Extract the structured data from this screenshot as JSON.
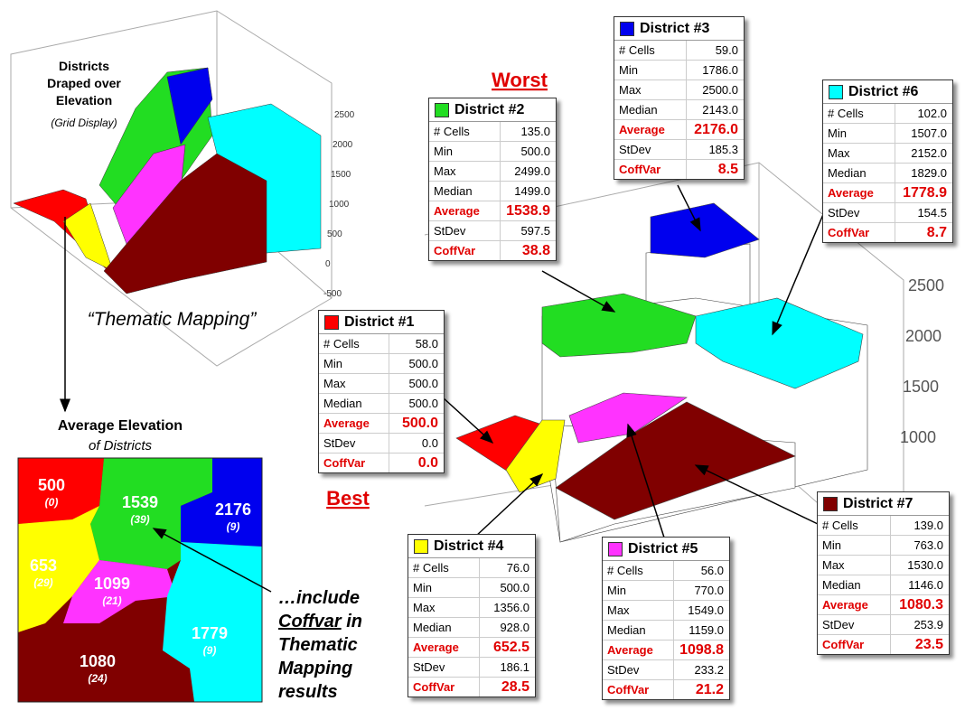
{
  "elevation_plot": {
    "title": "Districts Draped over Elevation",
    "subtitle": "(Grid Display)",
    "ticks": [
      "2500",
      "2000",
      "1500",
      "1000",
      "500",
      "0",
      "-500"
    ],
    "caption": "“Thematic Mapping”"
  },
  "map": {
    "title": "Average Elevation",
    "subtitle": "of Districts",
    "labels": [
      {
        "value": "500",
        "coffvar": "(0)"
      },
      {
        "value": "1539",
        "coffvar": "(39)"
      },
      {
        "value": "2176",
        "coffvar": "(9)"
      },
      {
        "value": "653",
        "coffvar": "(29)"
      },
      {
        "value": "1099",
        "coffvar": "(21)"
      },
      {
        "value": "1779",
        "coffvar": "(9)"
      },
      {
        "value": "1080",
        "coffvar": "(24)"
      }
    ]
  },
  "note": {
    "line1": "…include",
    "line2": "Coffvar",
    "line3": " in",
    "line4": "Thematic",
    "line5": "Mapping",
    "line6": "results"
  },
  "worst": "Worst",
  "best": "Best",
  "surface_plot": {
    "ticks": [
      "2500",
      "2000",
      "1500",
      "1000"
    ]
  },
  "districts": [
    {
      "name": "District #1",
      "color": "#ff0000",
      "rows": [
        {
          "label": "# Cells",
          "value": "58.0"
        },
        {
          "label": "Min",
          "value": "500.0"
        },
        {
          "label": "Max",
          "value": "500.0"
        },
        {
          "label": "Median",
          "value": "500.0"
        },
        {
          "label": "Average",
          "value": "500.0"
        },
        {
          "label": "StDev",
          "value": "0.0"
        },
        {
          "label": "CoffVar",
          "value": "0.0"
        }
      ]
    },
    {
      "name": "District #2",
      "color": "#22dd22",
      "rows": [
        {
          "label": "# Cells",
          "value": "135.0"
        },
        {
          "label": "Min",
          "value": "500.0"
        },
        {
          "label": "Max",
          "value": "2499.0"
        },
        {
          "label": "Median",
          "value": "1499.0"
        },
        {
          "label": "Average",
          "value": "1538.9"
        },
        {
          "label": "StDev",
          "value": "597.5"
        },
        {
          "label": "CoffVar",
          "value": "38.8"
        }
      ]
    },
    {
      "name": "District #3",
      "color": "#0000ee",
      "rows": [
        {
          "label": "# Cells",
          "value": "59.0"
        },
        {
          "label": "Min",
          "value": "1786.0"
        },
        {
          "label": "Max",
          "value": "2500.0"
        },
        {
          "label": "Median",
          "value": "2143.0"
        },
        {
          "label": "Average",
          "value": "2176.0"
        },
        {
          "label": "StDev",
          "value": "185.3"
        },
        {
          "label": "CoffVar",
          "value": "8.5"
        }
      ]
    },
    {
      "name": "District #4",
      "color": "#ffff00",
      "rows": [
        {
          "label": "# Cells",
          "value": "76.0"
        },
        {
          "label": "Min",
          "value": "500.0"
        },
        {
          "label": "Max",
          "value": "1356.0"
        },
        {
          "label": "Median",
          "value": "928.0"
        },
        {
          "label": "Average",
          "value": "652.5"
        },
        {
          "label": "StDev",
          "value": "186.1"
        },
        {
          "label": "CoffVar",
          "value": "28.5"
        }
      ]
    },
    {
      "name": "District #5",
      "color": "#ff33ff",
      "rows": [
        {
          "label": "# Cells",
          "value": "56.0"
        },
        {
          "label": "Min",
          "value": "770.0"
        },
        {
          "label": "Max",
          "value": "1549.0"
        },
        {
          "label": "Median",
          "value": "1159.0"
        },
        {
          "label": "Average",
          "value": "1098.8"
        },
        {
          "label": "StDev",
          "value": "233.2"
        },
        {
          "label": "CoffVar",
          "value": "21.2"
        }
      ]
    },
    {
      "name": "District #6",
      "color": "#00ffff",
      "rows": [
        {
          "label": "# Cells",
          "value": "102.0"
        },
        {
          "label": "Min",
          "value": "1507.0"
        },
        {
          "label": "Max",
          "value": "2152.0"
        },
        {
          "label": "Median",
          "value": "1829.0"
        },
        {
          "label": "Average",
          "value": "1778.9"
        },
        {
          "label": "StDev",
          "value": "154.5"
        },
        {
          "label": "CoffVar",
          "value": "8.7"
        }
      ]
    },
    {
      "name": "District #7",
      "color": "#800000",
      "rows": [
        {
          "label": "# Cells",
          "value": "139.0"
        },
        {
          "label": "Min",
          "value": "763.0"
        },
        {
          "label": "Max",
          "value": "1530.0"
        },
        {
          "label": "Median",
          "value": "1146.0"
        },
        {
          "label": "Average",
          "value": "1080.3"
        },
        {
          "label": "StDev",
          "value": "253.9"
        },
        {
          "label": "CoffVar",
          "value": "23.5"
        }
      ]
    }
  ]
}
